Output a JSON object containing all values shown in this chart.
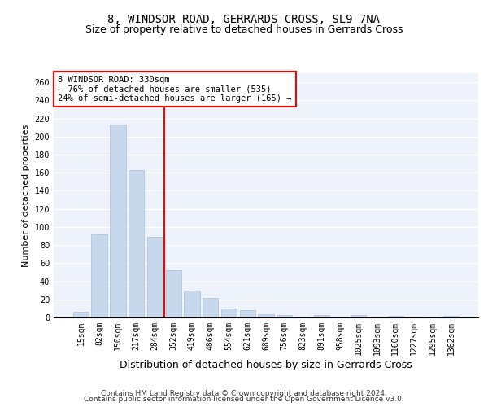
{
  "title": "8, WINDSOR ROAD, GERRARDS CROSS, SL9 7NA",
  "subtitle": "Size of property relative to detached houses in Gerrards Cross",
  "xlabel": "Distribution of detached houses by size in Gerrards Cross",
  "ylabel": "Number of detached properties",
  "categories": [
    "15sqm",
    "82sqm",
    "150sqm",
    "217sqm",
    "284sqm",
    "352sqm",
    "419sqm",
    "486sqm",
    "554sqm",
    "621sqm",
    "689sqm",
    "756sqm",
    "823sqm",
    "891sqm",
    "958sqm",
    "1025sqm",
    "1093sqm",
    "1160sqm",
    "1227sqm",
    "1295sqm",
    "1362sqm"
  ],
  "values": [
    6,
    92,
    213,
    163,
    89,
    52,
    30,
    22,
    10,
    8,
    4,
    3,
    1,
    3,
    1,
    3,
    0,
    2,
    0,
    1,
    2
  ],
  "bar_color": "#c8d8ec",
  "bar_edge_color": "#a8c0dc",
  "annotation_text": "8 WINDSOR ROAD: 330sqm\n← 76% of detached houses are smaller (535)\n24% of semi-detached houses are larger (165) →",
  "annotation_box_color": "white",
  "annotation_box_edge_color": "red",
  "line_color": "red",
  "ylim": [
    0,
    270
  ],
  "yticks": [
    0,
    20,
    40,
    60,
    80,
    100,
    120,
    140,
    160,
    180,
    200,
    220,
    240,
    260
  ],
  "background_color": "#eef2fb",
  "grid_color": "white",
  "footer_line1": "Contains HM Land Registry data © Crown copyright and database right 2024.",
  "footer_line2": "Contains public sector information licensed under the Open Government Licence v3.0.",
  "title_fontsize": 10,
  "subtitle_fontsize": 9,
  "xlabel_fontsize": 9,
  "ylabel_fontsize": 8,
  "tick_fontsize": 7,
  "footer_fontsize": 6.5
}
